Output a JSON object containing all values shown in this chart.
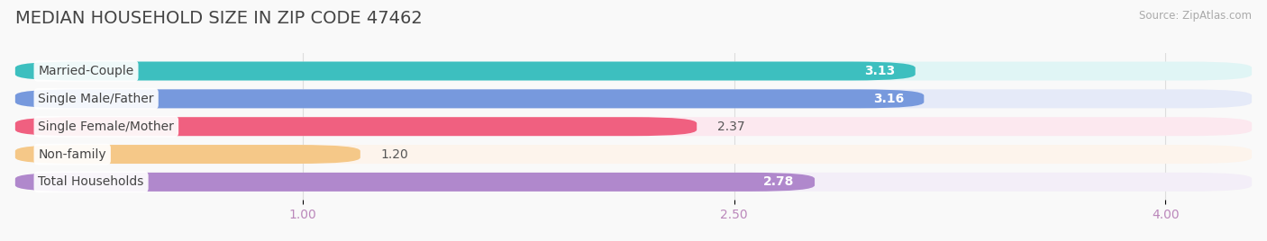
{
  "title": "MEDIAN HOUSEHOLD SIZE IN ZIP CODE 47462",
  "source": "Source: ZipAtlas.com",
  "categories": [
    "Married-Couple",
    "Single Male/Father",
    "Single Female/Mother",
    "Non-family",
    "Total Households"
  ],
  "values": [
    3.13,
    3.16,
    2.37,
    1.2,
    2.78
  ],
  "bar_colors": [
    "#3dbfbf",
    "#7799dd",
    "#f06080",
    "#f5c888",
    "#b088cc"
  ],
  "bar_bg_colors": [
    "#e0f5f5",
    "#e5eaf8",
    "#fce8ef",
    "#fdf4ec",
    "#f3eef8"
  ],
  "xlim": [
    0,
    4.3
  ],
  "xmin": 0,
  "xticks": [
    1.0,
    2.5,
    4.0
  ],
  "title_fontsize": 14,
  "label_fontsize": 10,
  "value_fontsize": 10,
  "tick_fontsize": 10,
  "bar_height": 0.68,
  "bar_gap": 1.0,
  "background_color": "#f9f9f9",
  "title_color": "#444444",
  "tick_color": "#bb88bb",
  "value_color_inside": "#ffffff",
  "value_color_outside": "#555555",
  "label_color": "#444444",
  "grid_color": "#dddddd",
  "source_color": "#aaaaaa"
}
